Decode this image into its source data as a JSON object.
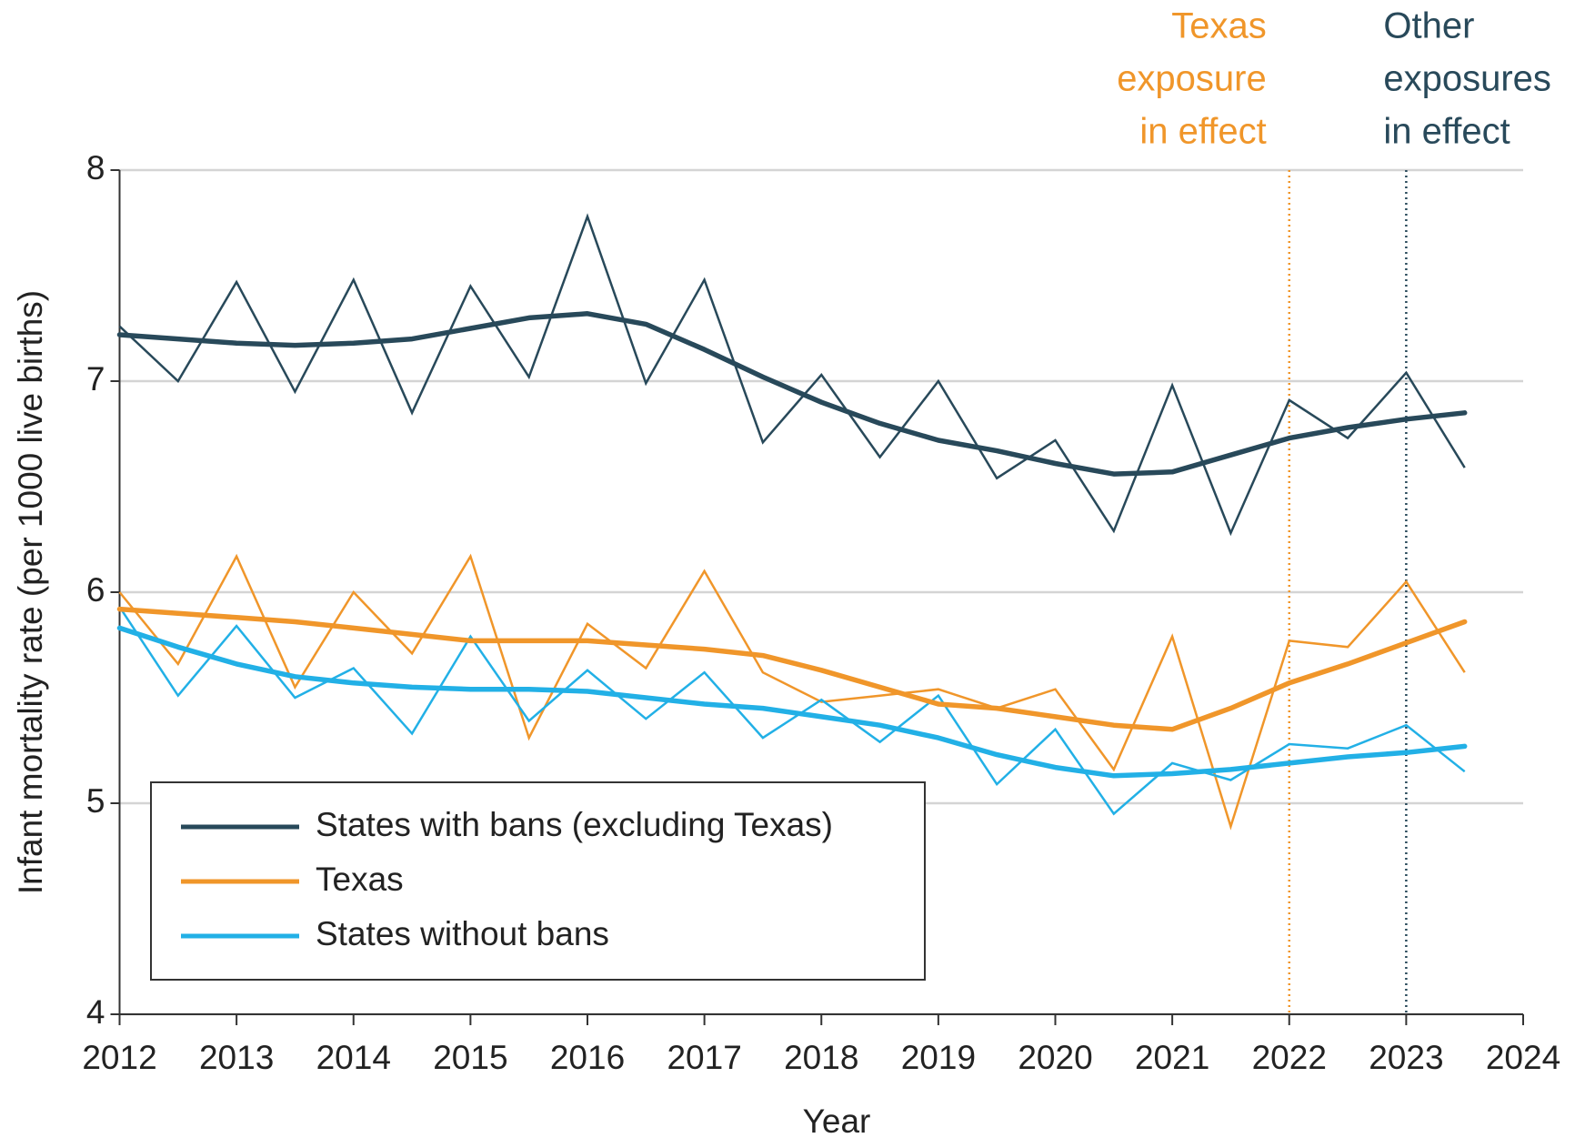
{
  "chart_data": {
    "type": "line",
    "x_label": "Year",
    "y_label": "Infant mortality rate (per 1000 live births)",
    "x": [
      2012,
      2012.5,
      2013,
      2013.5,
      2014,
      2014.5,
      2015,
      2015.5,
      2016,
      2016.5,
      2017,
      2017.5,
      2018,
      2018.5,
      2019,
      2019.5,
      2020,
      2020.5,
      2021,
      2021.5,
      2022,
      2022.5,
      2023,
      2023.5
    ],
    "xlim": [
      2012,
      2024
    ],
    "xticks": [
      2012,
      2013,
      2014,
      2015,
      2016,
      2017,
      2018,
      2019,
      2020,
      2021,
      2022,
      2023,
      2024
    ],
    "ylim": [
      4,
      8
    ],
    "yticks": [
      4,
      5,
      6,
      7,
      8
    ],
    "grid": true,
    "legend": "lower left",
    "series": [
      {
        "name": "States with bans (excluding Texas)",
        "color": "#28495a",
        "values": [
          7.26,
          7.0,
          7.47,
          6.95,
          7.48,
          6.85,
          7.45,
          7.02,
          7.78,
          6.99,
          7.48,
          6.71,
          7.03,
          6.64,
          7.0,
          6.54,
          6.72,
          6.29,
          6.98,
          6.28,
          6.91,
          6.73,
          7.04,
          6.59
        ],
        "trend": [
          7.22,
          7.2,
          7.18,
          7.17,
          7.18,
          7.2,
          7.25,
          7.3,
          7.32,
          7.27,
          7.15,
          7.02,
          6.9,
          6.8,
          6.72,
          6.67,
          6.61,
          6.56,
          6.57,
          6.65,
          6.73,
          6.78,
          6.82,
          6.85
        ]
      },
      {
        "name": "Texas",
        "color": "#f0962a",
        "values": [
          6.0,
          5.66,
          6.17,
          5.55,
          6.0,
          5.71,
          6.17,
          5.31,
          5.85,
          5.64,
          6.1,
          5.62,
          5.48,
          5.51,
          5.54,
          5.45,
          5.54,
          5.16,
          5.79,
          4.89,
          5.77,
          5.74,
          6.05,
          5.62
        ],
        "trend": [
          5.92,
          5.9,
          5.88,
          5.86,
          5.83,
          5.8,
          5.77,
          5.77,
          5.77,
          5.75,
          5.73,
          5.7,
          5.63,
          5.55,
          5.47,
          5.45,
          5.41,
          5.37,
          5.35,
          5.45,
          5.57,
          5.66,
          5.76,
          5.86
        ]
      },
      {
        "name": "States without bans",
        "color": "#22b0e6",
        "values": [
          5.93,
          5.51,
          5.84,
          5.5,
          5.64,
          5.33,
          5.79,
          5.39,
          5.63,
          5.4,
          5.62,
          5.31,
          5.49,
          5.29,
          5.51,
          5.09,
          5.35,
          4.95,
          5.19,
          5.11,
          5.28,
          5.26,
          5.37,
          5.15
        ],
        "trend": [
          5.83,
          5.74,
          5.66,
          5.6,
          5.57,
          5.55,
          5.54,
          5.54,
          5.53,
          5.5,
          5.47,
          5.45,
          5.41,
          5.37,
          5.31,
          5.23,
          5.17,
          5.13,
          5.14,
          5.16,
          5.19,
          5.22,
          5.24,
          5.27
        ]
      }
    ],
    "annotations": [
      {
        "x": 2022,
        "color": "#f0962a",
        "lines": [
          "Texas",
          "exposure",
          "in effect"
        ]
      },
      {
        "x": 2023,
        "color": "#28495a",
        "lines": [
          "Other",
          "exposures",
          "in effect"
        ]
      }
    ]
  }
}
